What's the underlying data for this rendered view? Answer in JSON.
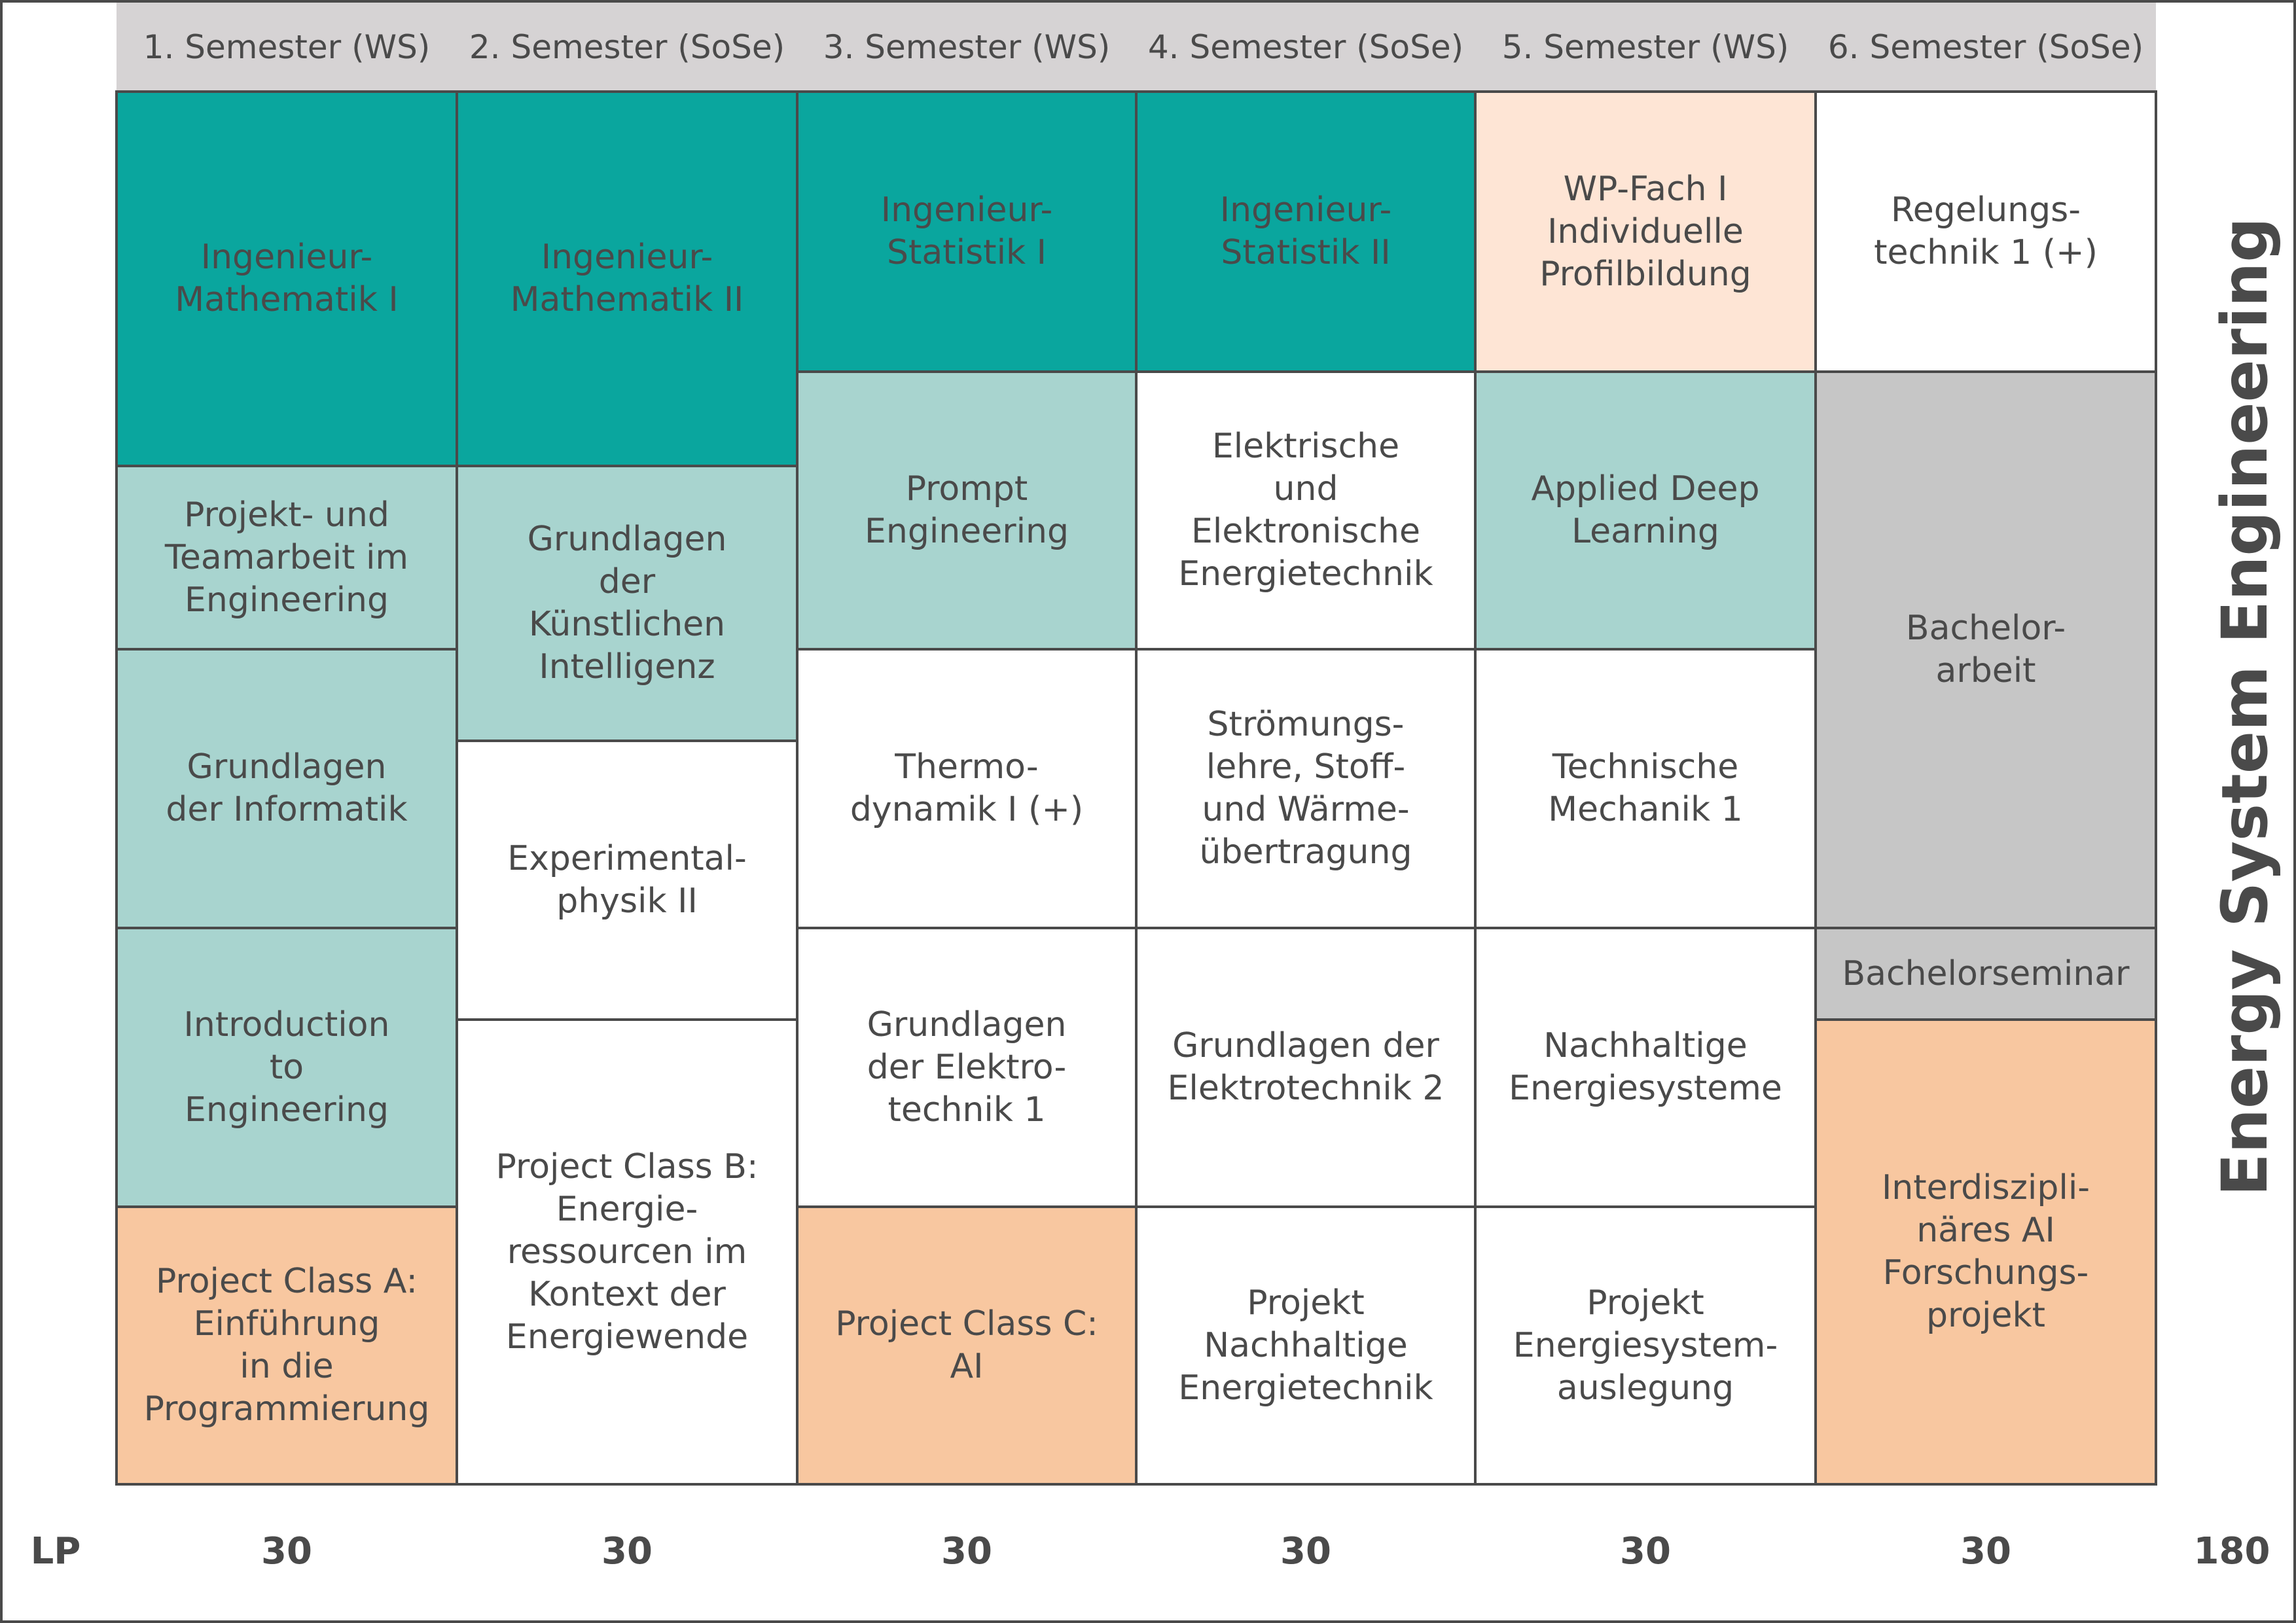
{
  "semesters": [
    "1. Semester (WS)",
    "2. Semester (SoSe)",
    "3. Semester (WS)",
    "4. Semester (SoSe)",
    "5. Semester (WS)",
    "6. Semester (SoSe)"
  ],
  "modules": {
    "s1": [
      "Ingenieur-\nMathematik I",
      "Projekt- und\nTeamarbeit im\nEngineering",
      "Grundlagen\nder Informatik",
      "Introduction\nto\nEngineering",
      "Project Class A:\nEinführung\nin die\nProgrammierung"
    ],
    "s2": [
      "Ingenieur-\nMathematik II",
      "Grundlagen\nder\nKünstlichen\nIntelligenz",
      "Experimental-\nphysik II",
      "Project Class B:\nEnergie-\nressourcen im\nKontext der\nEnergiewende"
    ],
    "s3": [
      "Ingenieur-\nStatistik I",
      "Prompt\nEngineering",
      "Thermo-\ndynamik I (+)",
      "Grundlagen\nder Elektro-\ntechnik 1",
      "Project Class C:\nAI"
    ],
    "s4": [
      "Ingenieur-\nStatistik II",
      "Elektrische\nund\nElektronische\nEnergietechnik",
      "Strömungs-\nlehre, Stoff-\nund Wärme-\nübertragung",
      "Grundlagen der\nElektrotechnik 2",
      "Projekt\nNachhaltige\nEnergietechnik"
    ],
    "s5": [
      "WP-Fach I\nIndividuelle\nProfilbildung",
      "Applied Deep\nLearning",
      "Technische\nMechanik 1",
      "Nachhaltige\nEnergiesysteme",
      "Projekt\nEnergiesystem-\nauslegung"
    ],
    "s6": [
      "Regelungs-\ntechnik 1 (+)",
      "Bachelor-\narbeit",
      "Bachelorseminar",
      "Interdiszipli-\nnäres AI\nForschungs-\nprojekt"
    ]
  },
  "lp": {
    "label": "LP",
    "values": [
      "30",
      "30",
      "30",
      "30",
      "30",
      "30"
    ],
    "total": "180"
  },
  "program_title": "Energy System Engineering",
  "colors": {
    "core_dark": "#0aa69e",
    "core_light": "#a8d4cf",
    "elective": "#fee5d5",
    "project": "#f8c7a0",
    "thesis": "#c6c6c6",
    "header": "#d6d3d4",
    "text": "#4a4a4a"
  }
}
